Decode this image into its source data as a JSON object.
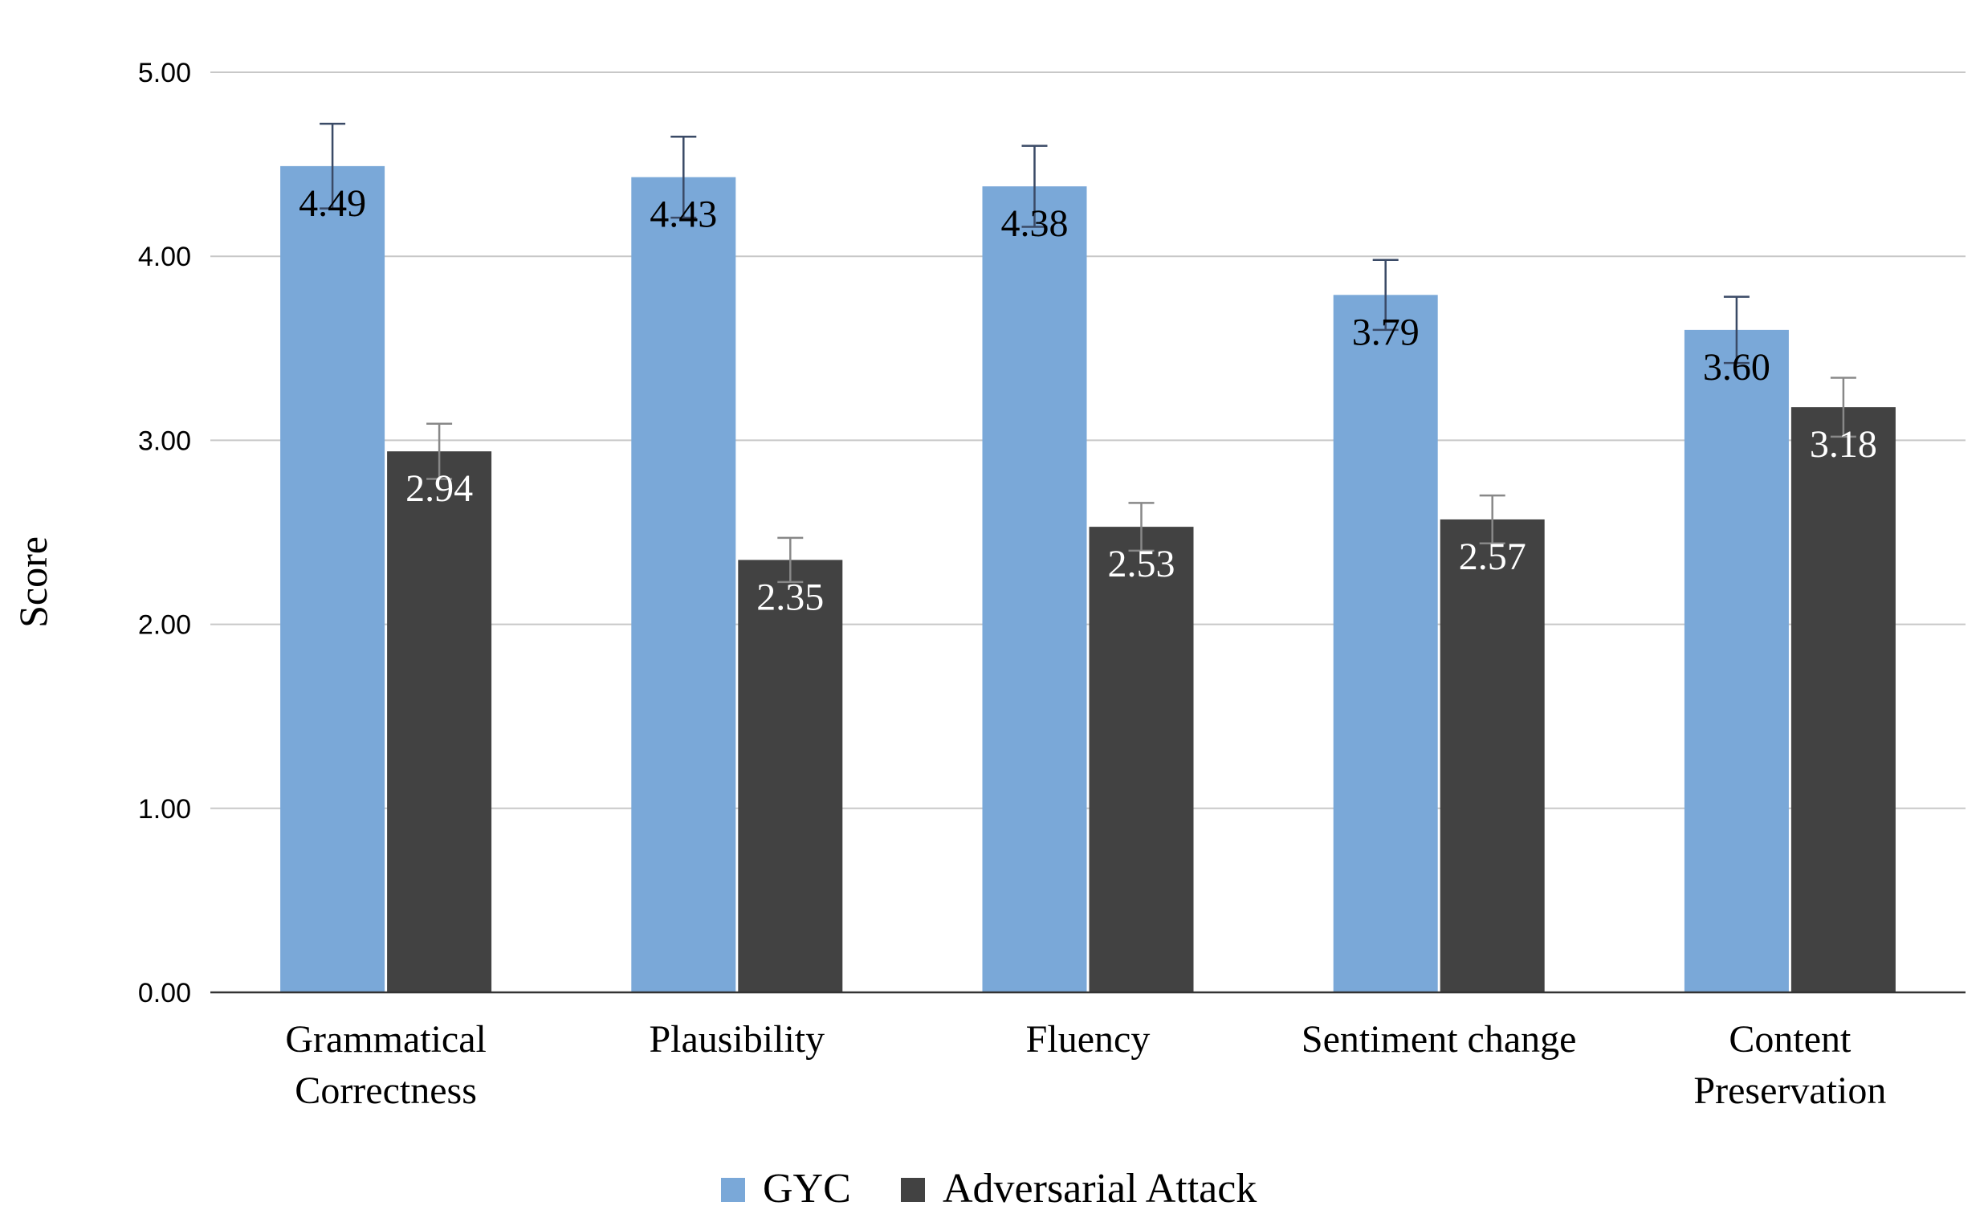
{
  "chart_data": {
    "type": "bar",
    "title": "",
    "xlabel": "",
    "ylabel": "Score",
    "ylim": [
      0,
      5
    ],
    "yticks": [
      "0.00",
      "1.00",
      "2.00",
      "3.00",
      "4.00",
      "5.00"
    ],
    "grid": true,
    "legend_position": "bottom",
    "categories": [
      [
        "Grammatical",
        "Correctness"
      ],
      [
        "Plausibility"
      ],
      [
        "Fluency"
      ],
      [
        "Sentiment change"
      ],
      [
        "Content",
        "Preservation"
      ]
    ],
    "series": [
      {
        "name": "GYC",
        "color": "#7aa8d8",
        "label_color": "#000000",
        "error_color": "#3a4a66",
        "values": [
          4.49,
          4.43,
          4.38,
          3.79,
          3.6
        ],
        "labels": [
          "4.49",
          "4.43",
          "4.38",
          "3.79",
          "3.60"
        ],
        "errors": [
          0.23,
          0.22,
          0.22,
          0.19,
          0.18
        ]
      },
      {
        "name": "Adversarial Attack",
        "color": "#424242",
        "label_color": "#ffffff",
        "error_color": "#888888",
        "values": [
          2.94,
          2.35,
          2.53,
          2.57,
          3.18
        ],
        "labels": [
          "2.94",
          "2.35",
          "2.53",
          "2.57",
          "3.18"
        ],
        "errors": [
          0.15,
          0.12,
          0.13,
          0.13,
          0.16
        ]
      }
    ]
  }
}
